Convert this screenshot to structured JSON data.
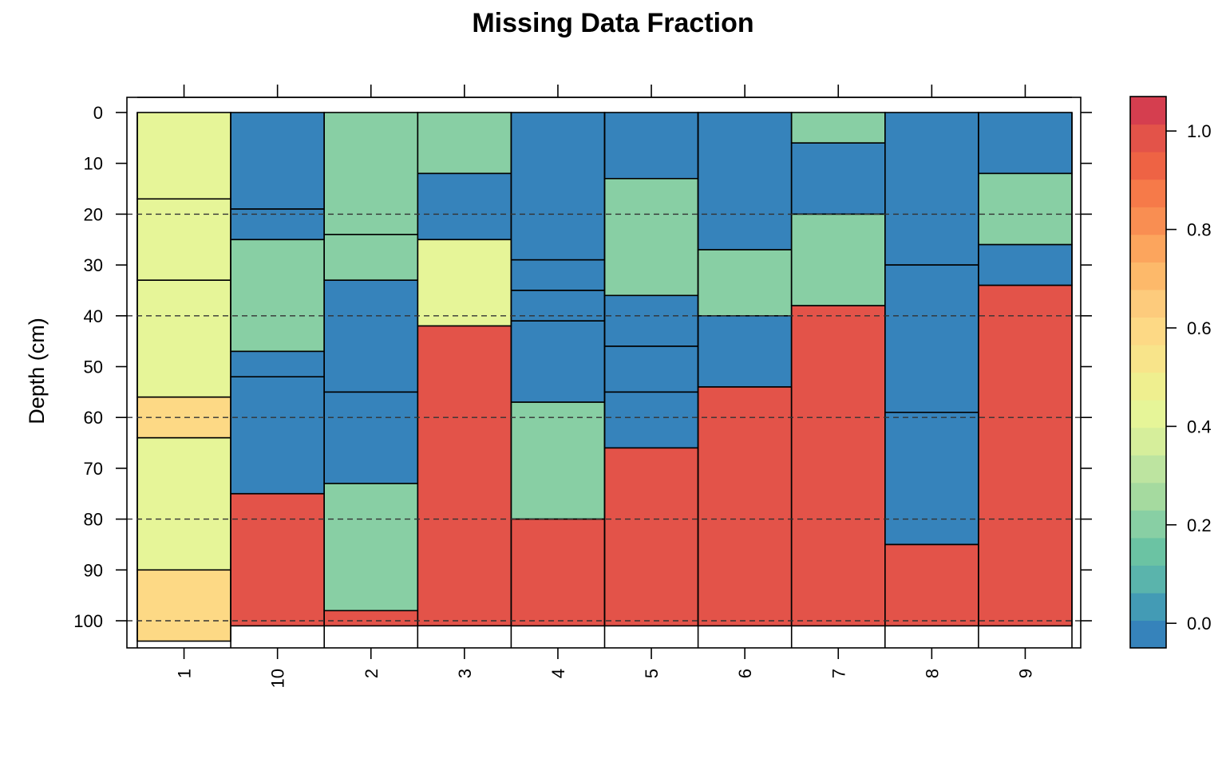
{
  "chart_data": {
    "type": "heatmap",
    "title": "Missing Data Fraction",
    "ylabel": "Depth (cm)",
    "xlabel": "",
    "ylim": [
      105,
      -3
    ],
    "y_ticks": [
      0,
      10,
      20,
      30,
      40,
      50,
      60,
      70,
      80,
      90,
      100
    ],
    "y_tick_labels": [
      "0",
      "10",
      "20",
      "30",
      "40",
      "50",
      "60",
      "70",
      "80",
      "90",
      "100"
    ],
    "reference_lines": [
      20,
      40,
      60,
      80,
      100
    ],
    "grid": false,
    "colorbar": {
      "min": -0.05,
      "max": 1.07,
      "ticks": [
        0.0,
        0.2,
        0.4,
        0.6,
        0.8,
        1.0
      ],
      "tick_labels": [
        "0.0",
        "0.2",
        "0.4",
        "0.6",
        "0.8",
        "1.0"
      ],
      "colors": [
        "#3683BB",
        "#439BB5",
        "#5AB4AC",
        "#6BC3A3",
        "#88CFA4",
        "#A5DA9F",
        "#BDE4A0",
        "#D6EE9B",
        "#E6F598",
        "#EFEF8F",
        "#F8E48A",
        "#FDD985",
        "#FDCB7C",
        "#FDB96A",
        "#FCA55D",
        "#F98E52",
        "#F67A49",
        "#EE6344",
        "#E35349",
        "#D53E4F"
      ]
    },
    "categories": [
      "1",
      "10",
      "2",
      "3",
      "4",
      "5",
      "6",
      "7",
      "8",
      "9"
    ],
    "profiles": [
      {
        "id": "1",
        "horizons": [
          {
            "top": 0,
            "bottom": 17,
            "value": 0.42
          },
          {
            "top": 17,
            "bottom": 33,
            "value": 0.42
          },
          {
            "top": 33,
            "bottom": 56,
            "value": 0.42
          },
          {
            "top": 56,
            "bottom": 64,
            "value": 0.58
          },
          {
            "top": 64,
            "bottom": 90,
            "value": 0.42
          },
          {
            "top": 90,
            "bottom": 104,
            "value": 0.58
          }
        ]
      },
      {
        "id": "10",
        "horizons": [
          {
            "top": 0,
            "bottom": 19,
            "value": 0.0
          },
          {
            "top": 19,
            "bottom": 25,
            "value": 0.0
          },
          {
            "top": 25,
            "bottom": 47,
            "value": 0.2
          },
          {
            "top": 47,
            "bottom": 52,
            "value": 0.0
          },
          {
            "top": 52,
            "bottom": 75,
            "value": 0.0
          },
          {
            "top": 75,
            "bottom": 101,
            "value": 1.0
          }
        ]
      },
      {
        "id": "2",
        "horizons": [
          {
            "top": 0,
            "bottom": 24,
            "value": 0.2
          },
          {
            "top": 24,
            "bottom": 33,
            "value": 0.2
          },
          {
            "top": 33,
            "bottom": 55,
            "value": 0.0
          },
          {
            "top": 55,
            "bottom": 73,
            "value": 0.0
          },
          {
            "top": 73,
            "bottom": 98,
            "value": 0.2
          },
          {
            "top": 98,
            "bottom": 101,
            "value": 1.0
          }
        ]
      },
      {
        "id": "3",
        "horizons": [
          {
            "top": 0,
            "bottom": 12,
            "value": 0.2
          },
          {
            "top": 12,
            "bottom": 25,
            "value": 0.0
          },
          {
            "top": 25,
            "bottom": 42,
            "value": 0.42
          },
          {
            "top": 42,
            "bottom": 101,
            "value": 1.0
          }
        ]
      },
      {
        "id": "4",
        "horizons": [
          {
            "top": 0,
            "bottom": 29,
            "value": 0.0
          },
          {
            "top": 29,
            "bottom": 35,
            "value": 0.0
          },
          {
            "top": 35,
            "bottom": 41,
            "value": 0.0
          },
          {
            "top": 41,
            "bottom": 57,
            "value": 0.0
          },
          {
            "top": 57,
            "bottom": 80,
            "value": 0.2
          },
          {
            "top": 80,
            "bottom": 101,
            "value": 1.0
          }
        ]
      },
      {
        "id": "5",
        "horizons": [
          {
            "top": 0,
            "bottom": 13,
            "value": 0.0
          },
          {
            "top": 13,
            "bottom": 36,
            "value": 0.2
          },
          {
            "top": 36,
            "bottom": 46,
            "value": 0.0
          },
          {
            "top": 46,
            "bottom": 55,
            "value": 0.0
          },
          {
            "top": 55,
            "bottom": 66,
            "value": 0.0
          },
          {
            "top": 66,
            "bottom": 101,
            "value": 1.0
          }
        ]
      },
      {
        "id": "6",
        "horizons": [
          {
            "top": 0,
            "bottom": 27,
            "value": 0.0
          },
          {
            "top": 27,
            "bottom": 40,
            "value": 0.2
          },
          {
            "top": 40,
            "bottom": 54,
            "value": 0.0
          },
          {
            "top": 54,
            "bottom": 101,
            "value": 1.0
          }
        ]
      },
      {
        "id": "7",
        "horizons": [
          {
            "top": 0,
            "bottom": 6,
            "value": 0.2
          },
          {
            "top": 6,
            "bottom": 20,
            "value": 0.0
          },
          {
            "top": 20,
            "bottom": 38,
            "value": 0.2
          },
          {
            "top": 38,
            "bottom": 101,
            "value": 1.0
          }
        ]
      },
      {
        "id": "8",
        "horizons": [
          {
            "top": 0,
            "bottom": 30,
            "value": 0.0
          },
          {
            "top": 30,
            "bottom": 59,
            "value": 0.0
          },
          {
            "top": 59,
            "bottom": 85,
            "value": 0.0
          },
          {
            "top": 85,
            "bottom": 101,
            "value": 1.0
          }
        ]
      },
      {
        "id": "9",
        "horizons": [
          {
            "top": 0,
            "bottom": 12,
            "value": 0.0
          },
          {
            "top": 12,
            "bottom": 26,
            "value": 0.2
          },
          {
            "top": 26,
            "bottom": 34,
            "value": 0.0
          },
          {
            "top": 34,
            "bottom": 101,
            "value": 1.0
          }
        ]
      }
    ]
  }
}
